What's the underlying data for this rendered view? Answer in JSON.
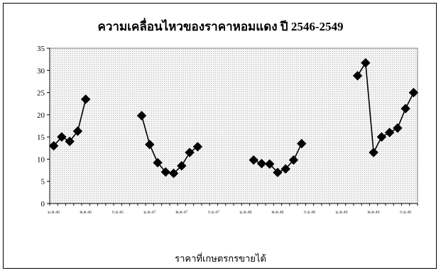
{
  "chart_data": {
    "type": "line",
    "title": "ความเคลื่อนไหวของราคาหอมแดง ปี 2546-2549",
    "xlabel": "",
    "ylabel": "",
    "ylim": [
      0,
      35
    ],
    "yticks": [
      0,
      5,
      10,
      15,
      20,
      25,
      30,
      35
    ],
    "grid": false,
    "legend_position": "bottom",
    "x_tick_labels": [
      "ม.ค.46",
      "พ.ค.46",
      "ก.ย.46",
      "ม.ค.47",
      "พ.ค.47",
      "ก.ย.47",
      "ม.ค.48",
      "พ.ค.48",
      "ก.ย.48",
      "ม.ค.49",
      "พ.ค.49",
      "ก.ย.49"
    ],
    "series": [
      {
        "name": "ราคาที่เกษตรกรขายได้",
        "color": "#000000",
        "values": [
          13,
          15,
          14,
          16.3,
          23.5,
          null,
          null,
          null,
          null,
          null,
          null,
          19.8,
          13.3,
          9.2,
          7.1,
          6.8,
          8.5,
          11.5,
          12.8,
          null,
          null,
          null,
          null,
          null,
          null,
          9.8,
          9,
          8.9,
          7,
          7.8,
          9.8,
          13.5,
          null,
          null,
          null,
          null,
          null,
          null,
          28.8,
          31.7,
          11.5,
          15,
          16,
          17,
          21.4,
          25
        ]
      }
    ]
  }
}
